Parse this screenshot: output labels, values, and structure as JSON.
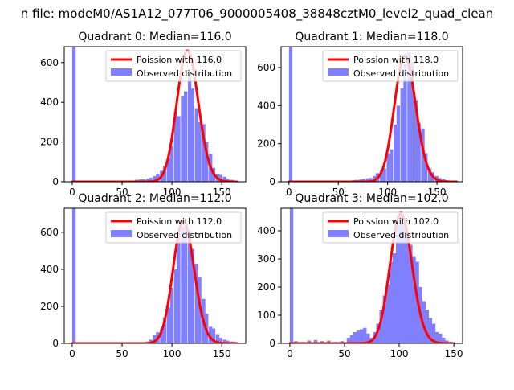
{
  "figure": {
    "suptitle": "n file: modeM0/AS1A12_077T06_9000005408_38848cztM0_level2_quad_clean"
  },
  "colors": {
    "observed": "#8080ff",
    "poisson": "#ff0000",
    "axis": "#000000",
    "background": "#ffffff"
  },
  "chart_data": [
    {
      "type": "bar",
      "title": "Quadrant 0: Median=116.0",
      "xlim": [
        -8,
        174
      ],
      "ylim": [
        0,
        680
      ],
      "xticks": [
        0,
        50,
        100,
        150
      ],
      "yticks": [
        0,
        200,
        400,
        600
      ],
      "legend_position": "top-right",
      "observed": {
        "name": "Observed distribution",
        "bin_width": 3.5,
        "bins": [
          [
            0,
            680
          ],
          [
            63,
            10
          ],
          [
            67,
            12
          ],
          [
            70,
            12
          ],
          [
            74,
            15
          ],
          [
            77,
            20
          ],
          [
            81,
            28
          ],
          [
            84,
            40
          ],
          [
            88,
            55
          ],
          [
            91,
            80
          ],
          [
            95,
            120
          ],
          [
            98,
            180
          ],
          [
            102,
            350
          ],
          [
            105,
            330
          ],
          [
            109,
            430
          ],
          [
            112,
            455
          ],
          [
            116,
            530
          ],
          [
            119,
            470
          ],
          [
            123,
            370
          ],
          [
            126,
            300
          ],
          [
            130,
            290
          ],
          [
            133,
            200
          ],
          [
            137,
            140
          ],
          [
            140,
            70
          ],
          [
            144,
            40
          ],
          [
            147,
            35
          ],
          [
            151,
            25
          ],
          [
            154,
            15
          ],
          [
            158,
            10
          ],
          [
            161,
            5
          ]
        ]
      },
      "poisson": {
        "name": "Poission with 116.0",
        "mean": 116.0,
        "scale": 660,
        "range": [
          0,
          165
        ]
      }
    },
    {
      "type": "bar",
      "title": "Quadrant 1: Median=118.0",
      "xlim": [
        -8,
        176
      ],
      "ylim": [
        0,
        710
      ],
      "xticks": [
        0,
        50,
        100,
        150
      ],
      "yticks": [
        0,
        200,
        400,
        600
      ],
      "legend_position": "top-right",
      "observed": {
        "name": "Observed distribution",
        "bin_width": 3.5,
        "bins": [
          [
            0,
            710
          ],
          [
            60,
            5
          ],
          [
            64,
            8
          ],
          [
            67,
            10
          ],
          [
            71,
            12
          ],
          [
            74,
            15
          ],
          [
            78,
            18
          ],
          [
            81,
            20
          ],
          [
            85,
            30
          ],
          [
            88,
            45
          ],
          [
            92,
            60
          ],
          [
            95,
            70
          ],
          [
            99,
            150
          ],
          [
            102,
            170
          ],
          [
            106,
            300
          ],
          [
            109,
            400
          ],
          [
            113,
            490
          ],
          [
            116,
            620
          ],
          [
            120,
            680
          ],
          [
            123,
            630
          ],
          [
            127,
            430
          ],
          [
            130,
            310
          ],
          [
            134,
            280
          ],
          [
            137,
            150
          ],
          [
            141,
            70
          ],
          [
            144,
            50
          ],
          [
            148,
            30
          ],
          [
            151,
            20
          ],
          [
            155,
            15
          ],
          [
            158,
            8
          ]
        ]
      },
      "poisson": {
        "name": "Poission with 118.0",
        "mean": 118.0,
        "scale": 660,
        "range": [
          0,
          170
        ]
      }
    },
    {
      "type": "bar",
      "title": "Quadrant 2: Median=112.0",
      "xlim": [
        -8,
        174
      ],
      "ylim": [
        0,
        730
      ],
      "xticks": [
        0,
        50,
        100,
        150
      ],
      "yticks": [
        0,
        200,
        400,
        600
      ],
      "legend_position": "top-right",
      "observed": {
        "name": "Observed distribution",
        "bin_width": 3.5,
        "bins": [
          [
            0,
            730
          ],
          [
            70,
            5
          ],
          [
            74,
            10
          ],
          [
            77,
            20
          ],
          [
            81,
            45
          ],
          [
            84,
            60
          ],
          [
            88,
            80
          ],
          [
            91,
            140
          ],
          [
            95,
            190
          ],
          [
            98,
            300
          ],
          [
            102,
            400
          ],
          [
            105,
            590
          ],
          [
            109,
            630
          ],
          [
            112,
            640
          ],
          [
            116,
            610
          ],
          [
            119,
            510
          ],
          [
            123,
            430
          ],
          [
            126,
            360
          ],
          [
            130,
            240
          ],
          [
            133,
            160
          ],
          [
            137,
            90
          ],
          [
            140,
            80
          ],
          [
            144,
            50
          ],
          [
            147,
            30
          ],
          [
            151,
            20
          ],
          [
            154,
            15
          ],
          [
            158,
            10
          ],
          [
            161,
            8
          ]
        ]
      },
      "poisson": {
        "name": "Poission with 112.0",
        "mean": 112.0,
        "scale": 660,
        "range": [
          0,
          165
        ]
      }
    },
    {
      "type": "bar",
      "title": "Quadrant 3: Median=102.0",
      "xlim": [
        -8,
        158
      ],
      "ylim": [
        0,
        480
      ],
      "xticks": [
        0,
        50,
        100,
        150
      ],
      "yticks": [
        0,
        100,
        200,
        300,
        400
      ],
      "legend_position": "top-right",
      "observed": {
        "name": "Observed distribution",
        "bin_width": 3.2,
        "bins": [
          [
            0,
            480
          ],
          [
            4,
            8
          ],
          [
            10,
            5
          ],
          [
            16,
            10
          ],
          [
            22,
            12
          ],
          [
            28,
            8
          ],
          [
            34,
            10
          ],
          [
            40,
            5
          ],
          [
            46,
            8
          ],
          [
            52,
            20
          ],
          [
            55,
            30
          ],
          [
            58,
            40
          ],
          [
            61,
            45
          ],
          [
            64,
            50
          ],
          [
            67,
            55
          ],
          [
            70,
            35
          ],
          [
            73,
            20
          ],
          [
            76,
            40
          ],
          [
            79,
            70
          ],
          [
            82,
            120
          ],
          [
            85,
            170
          ],
          [
            88,
            210
          ],
          [
            91,
            290
          ],
          [
            94,
            320
          ],
          [
            97,
            420
          ],
          [
            100,
            470
          ],
          [
            103,
            420
          ],
          [
            106,
            380
          ],
          [
            109,
            350
          ],
          [
            112,
            310
          ],
          [
            115,
            290
          ],
          [
            118,
            200
          ],
          [
            121,
            150
          ],
          [
            124,
            120
          ],
          [
            127,
            90
          ],
          [
            130,
            70
          ],
          [
            133,
            40
          ],
          [
            136,
            35
          ],
          [
            139,
            20
          ],
          [
            142,
            10
          ],
          [
            145,
            6
          ]
        ]
      },
      "poisson": {
        "name": "Poission with 102.0",
        "mean": 102.0,
        "scale": 460,
        "range": [
          0,
          150
        ]
      }
    }
  ]
}
